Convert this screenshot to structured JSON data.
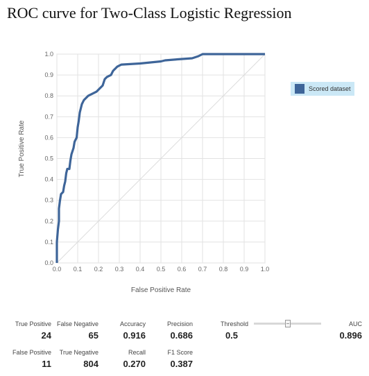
{
  "title": "ROC curve for Two-Class Logistic Regression",
  "chart_data": {
    "type": "line",
    "xlabel": "False Positive Rate",
    "ylabel": "True Positive Rate",
    "xlim": [
      0,
      1
    ],
    "ylim": [
      0,
      1
    ],
    "x_ticks": [
      "0.0",
      "0.1",
      "0.2",
      "0.3",
      "0.4",
      "0.5",
      "0.6",
      "0.7",
      "0.8",
      "0.9",
      "1.0"
    ],
    "y_ticks": [
      "0.0",
      "0.1",
      "0.2",
      "0.3",
      "0.4",
      "0.5",
      "0.6",
      "0.7",
      "0.8",
      "0.9",
      "1.0"
    ],
    "grid": true,
    "diagonal": true,
    "legend_position": "right",
    "series": [
      {
        "name": "Scored dataset",
        "color": "#3e6599",
        "points": [
          [
            0,
            0
          ],
          [
            0,
            0.1
          ],
          [
            0.005,
            0.16
          ],
          [
            0.01,
            0.2
          ],
          [
            0.01,
            0.26
          ],
          [
            0.015,
            0.3
          ],
          [
            0.02,
            0.33
          ],
          [
            0.03,
            0.34
          ],
          [
            0.035,
            0.37
          ],
          [
            0.04,
            0.39
          ],
          [
            0.045,
            0.43
          ],
          [
            0.05,
            0.45
          ],
          [
            0.06,
            0.45
          ],
          [
            0.065,
            0.49
          ],
          [
            0.07,
            0.52
          ],
          [
            0.08,
            0.55
          ],
          [
            0.085,
            0.58
          ],
          [
            0.095,
            0.6
          ],
          [
            0.1,
            0.65
          ],
          [
            0.105,
            0.68
          ],
          [
            0.11,
            0.72
          ],
          [
            0.12,
            0.76
          ],
          [
            0.13,
            0.78
          ],
          [
            0.14,
            0.79
          ],
          [
            0.15,
            0.8
          ],
          [
            0.17,
            0.81
          ],
          [
            0.19,
            0.82
          ],
          [
            0.2,
            0.83
          ],
          [
            0.21,
            0.84
          ],
          [
            0.22,
            0.85
          ],
          [
            0.23,
            0.88
          ],
          [
            0.24,
            0.89
          ],
          [
            0.26,
            0.9
          ],
          [
            0.27,
            0.92
          ],
          [
            0.29,
            0.94
          ],
          [
            0.31,
            0.95
          ],
          [
            0.4,
            0.955
          ],
          [
            0.45,
            0.96
          ],
          [
            0.5,
            0.965
          ],
          [
            0.52,
            0.97
          ],
          [
            0.58,
            0.975
          ],
          [
            0.65,
            0.98
          ],
          [
            0.68,
            0.99
          ],
          [
            0.7,
            1.0
          ],
          [
            0.8,
            1.0
          ],
          [
            0.9,
            1.0
          ],
          [
            1.0,
            1.0
          ]
        ]
      }
    ]
  },
  "metrics": {
    "true_positive": {
      "label": "True Positive",
      "value": "24"
    },
    "false_negative": {
      "label": "False Negative",
      "value": "65"
    },
    "accuracy": {
      "label": "Accuracy",
      "value": "0.916"
    },
    "precision": {
      "label": "Precision",
      "value": "0.686"
    },
    "threshold": {
      "label": "Threshold",
      "value": "0.5",
      "slider_fraction": 0.5
    },
    "auc": {
      "label": "AUC",
      "value": "0.896"
    },
    "false_positive": {
      "label": "False Positive",
      "value": "11"
    },
    "true_negative": {
      "label": "True Negative",
      "value": "804"
    },
    "recall": {
      "label": "Recall",
      "value": "0.270"
    },
    "f1_score": {
      "label": "F1 Score",
      "value": "0.387"
    }
  }
}
